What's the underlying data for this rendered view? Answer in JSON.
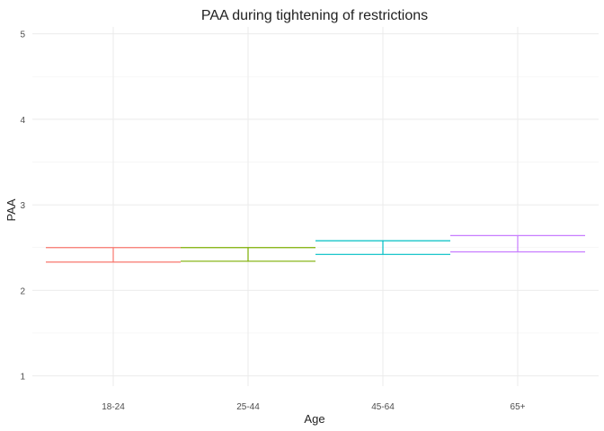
{
  "chart_data": {
    "type": "errorbar",
    "title": "PAA during tightening of restrictions",
    "xlabel": "Age",
    "ylabel": "PAA",
    "categories": [
      "18-24",
      "25-44",
      "45-64",
      "65+"
    ],
    "yticks": [
      1,
      2,
      3,
      4,
      5
    ],
    "ylim": [
      0.88,
      5.08
    ],
    "grid": true,
    "legend": "none",
    "bars": [
      {
        "category": "18-24",
        "low": 2.33,
        "high": 2.5,
        "color": "#F8766D"
      },
      {
        "category": "25-44",
        "low": 2.34,
        "high": 2.5,
        "color": "#7CAE00"
      },
      {
        "category": "45-64",
        "low": 2.42,
        "high": 2.58,
        "color": "#00BFC4"
      },
      {
        "category": "65+",
        "low": 2.45,
        "high": 2.64,
        "color": "#C77CFF"
      }
    ]
  }
}
